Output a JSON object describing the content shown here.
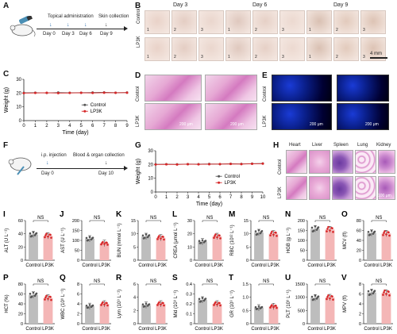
{
  "panels": {
    "A": {
      "letter": "A",
      "steps": [
        "Topical administration",
        "Skin collection"
      ],
      "days": [
        "Day 0",
        "Day 3",
        "Day 6",
        "Day 9"
      ]
    },
    "B": {
      "letter": "B",
      "cols": [
        "Day 3",
        "Day 6",
        "Day 9"
      ],
      "rows": [
        "Control",
        "LP3K"
      ],
      "nums": [
        "1",
        "2",
        "3"
      ],
      "scale": "4 mm"
    },
    "C": {
      "letter": "C"
    },
    "D": {
      "letter": "D",
      "rows": [
        "Control",
        "LP3K"
      ],
      "scales": [
        "200 μm",
        "200 μm"
      ]
    },
    "E": {
      "letter": "E",
      "rows": [
        "Control",
        "LP3K"
      ],
      "scales": [
        "200 μm",
        "200 μm"
      ]
    },
    "F": {
      "letter": "F",
      "steps": [
        "i.p. injection",
        "Blood & organ collection"
      ],
      "days": [
        "Day 0",
        "Day 10"
      ]
    },
    "G": {
      "letter": "G"
    },
    "H": {
      "letter": "H",
      "organs": [
        "Heart",
        "Liver",
        "Spleen",
        "Lung",
        "Kidney"
      ],
      "rows": [
        "Control",
        "LP3K"
      ],
      "scale": "100 μm"
    }
  },
  "chart_data": [
    {
      "id": "C",
      "type": "line",
      "xlabel": "Time (day)",
      "ylabel": "Weight (g)",
      "xlim": [
        0,
        9
      ],
      "ylim": [
        0,
        30
      ],
      "xticks": [
        "0",
        "1",
        "2",
        "3",
        "4",
        "5",
        "6",
        "7",
        "8",
        "9"
      ],
      "yticks": [
        "0",
        "10",
        "20",
        "30"
      ],
      "x": [
        0,
        1,
        2,
        3,
        4,
        5,
        6,
        7,
        8,
        9
      ],
      "series": [
        {
          "name": "Control",
          "values": [
            20.2,
            20.3,
            20.1,
            20.4,
            20.2,
            20.3,
            20.4,
            20.5,
            20.3,
            20.4
          ],
          "color": "#555555"
        },
        {
          "name": "LP3K",
          "values": [
            20.0,
            20.1,
            20.2,
            20.0,
            20.1,
            20.2,
            20.1,
            20.3,
            20.2,
            20.3
          ],
          "color": "#d62728"
        }
      ]
    },
    {
      "id": "G",
      "type": "line",
      "xlabel": "Time (day)",
      "ylabel": "Weight (g)",
      "xlim": [
        0,
        10
      ],
      "ylim": [
        0,
        30
      ],
      "xticks": [
        "0",
        "1",
        "2",
        "3",
        "4",
        "5",
        "6",
        "7",
        "8",
        "9",
        "10"
      ],
      "yticks": [
        "0",
        "10",
        "20",
        "30"
      ],
      "x": [
        0,
        1,
        2,
        3,
        4,
        5,
        6,
        7,
        8,
        9,
        10
      ],
      "series": [
        {
          "name": "Control",
          "values": [
            20.1,
            20.2,
            20.1,
            20.3,
            20.2,
            20.4,
            20.3,
            20.5,
            20.4,
            20.6,
            20.7
          ],
          "color": "#555555"
        },
        {
          "name": "LP3K",
          "values": [
            20.0,
            20.1,
            20.0,
            20.2,
            20.1,
            20.2,
            20.3,
            20.4,
            20.3,
            20.5,
            20.6
          ],
          "color": "#d62728"
        }
      ]
    },
    {
      "id": "I",
      "type": "bar",
      "ylabel": "ALT (U L⁻¹)",
      "yticks": [
        "0",
        "20",
        "40",
        "60"
      ],
      "ylim": [
        0,
        60
      ],
      "categories": [
        "Control",
        "LP3K"
      ],
      "values": [
        39,
        37
      ],
      "sig": "NS"
    },
    {
      "id": "J",
      "type": "bar",
      "ylabel": "AST (U L⁻¹)",
      "yticks": [
        "0",
        "50",
        "100",
        "150",
        "200"
      ],
      "ylim": [
        0,
        200
      ],
      "categories": [
        "Control",
        "LP3K"
      ],
      "values": [
        108,
        85
      ],
      "sig": "NS"
    },
    {
      "id": "K",
      "type": "bar",
      "ylabel": "BUN (mmol L⁻¹)",
      "yticks": [
        "0",
        "5",
        "10",
        "15"
      ],
      "ylim": [
        0,
        15
      ],
      "categories": [
        "Control",
        "LP3K"
      ],
      "values": [
        9.0,
        8.5
      ],
      "sig": "NS"
    },
    {
      "id": "L",
      "type": "bar",
      "ylabel": "CREA (μmol L⁻¹)",
      "yticks": [
        "0",
        "10",
        "20",
        "30"
      ],
      "ylim": [
        0,
        30
      ],
      "categories": [
        "Control",
        "LP3K"
      ],
      "values": [
        14,
        18
      ],
      "sig": "NS"
    },
    {
      "id": "M",
      "type": "bar",
      "ylabel": "RBC (10¹² L⁻¹)",
      "yticks": [
        "0",
        "5",
        "10",
        "15"
      ],
      "ylim": [
        0,
        15
      ],
      "categories": [
        "Control",
        "LP3K"
      ],
      "values": [
        10.5,
        10.0
      ],
      "sig": "NS"
    },
    {
      "id": "N",
      "type": "bar",
      "ylabel": "HGB (g L⁻¹)",
      "yticks": [
        "0",
        "50",
        "100",
        "150",
        "200"
      ],
      "ylim": [
        0,
        200
      ],
      "categories": [
        "Control",
        "LP3K"
      ],
      "values": [
        158,
        155
      ],
      "sig": "NS"
    },
    {
      "id": "O",
      "type": "bar",
      "ylabel": "MCV (fl)",
      "yticks": [
        "0",
        "20",
        "40",
        "60",
        "80"
      ],
      "ylim": [
        0,
        80
      ],
      "categories": [
        "Control",
        "LP3K"
      ],
      "values": [
        55,
        54
      ],
      "sig": "NS"
    },
    {
      "id": "P",
      "type": "bar",
      "ylabel": "HCT (%)",
      "yticks": [
        "0",
        "20",
        "40",
        "60",
        "80"
      ],
      "ylim": [
        0,
        80
      ],
      "categories": [
        "Control",
        "LP3K"
      ],
      "values": [
        58,
        52
      ],
      "sig": "NS"
    },
    {
      "id": "Q",
      "type": "bar",
      "ylabel": "WBC (10⁹ L⁻¹)",
      "yticks": [
        "0",
        "2",
        "4",
        "6",
        "8"
      ],
      "ylim": [
        0,
        8
      ],
      "categories": [
        "Control",
        "LP3K"
      ],
      "values": [
        3.5,
        4.0
      ],
      "sig": "NS"
    },
    {
      "id": "R",
      "type": "bar",
      "ylabel": "Lym (10⁹ L⁻¹)",
      "yticks": [
        "0",
        "2",
        "4",
        "6"
      ],
      "ylim": [
        0,
        6
      ],
      "categories": [
        "Control",
        "LP3K"
      ],
      "values": [
        2.8,
        3.0
      ],
      "sig": "NS"
    },
    {
      "id": "S",
      "type": "bar",
      "ylabel": "Mid (10⁹ L⁻¹)",
      "yticks": [
        "0",
        "0.1",
        "0.2",
        "0.3",
        "0.4"
      ],
      "ylim": [
        0,
        0.4
      ],
      "categories": [
        "Control",
        "LP3K"
      ],
      "values": [
        0.24,
        0.2
      ],
      "sig": "NS"
    },
    {
      "id": "T",
      "type": "bar",
      "ylabel": "GR (10⁹ L⁻¹)",
      "yticks": [
        "0",
        "0.5",
        "1.0",
        "1.5"
      ],
      "ylim": [
        0,
        1.5
      ],
      "categories": [
        "Control",
        "LP3K"
      ],
      "values": [
        0.6,
        0.65
      ],
      "sig": "NS"
    },
    {
      "id": "U",
      "type": "bar",
      "ylabel": "PLT (10⁹ L⁻¹)",
      "yticks": [
        "0",
        "500",
        "1000",
        "1500"
      ],
      "ylim": [
        0,
        1500
      ],
      "categories": [
        "Control",
        "LP3K"
      ],
      "values": [
        980,
        990
      ],
      "sig": "NS"
    },
    {
      "id": "V",
      "type": "bar",
      "ylabel": "MPV (fl)",
      "yticks": [
        "0",
        "2",
        "4",
        "6",
        "8"
      ],
      "ylim": [
        0,
        8
      ],
      "categories": [
        "Control",
        "LP3K"
      ],
      "values": [
        6.3,
        6.2
      ],
      "sig": "NS"
    }
  ],
  "colors": {
    "control": "#bdbdbd",
    "lp": "#f4b6b6",
    "lp_line": "#d62728",
    "control_line": "#555555",
    "axis": "#222222"
  }
}
